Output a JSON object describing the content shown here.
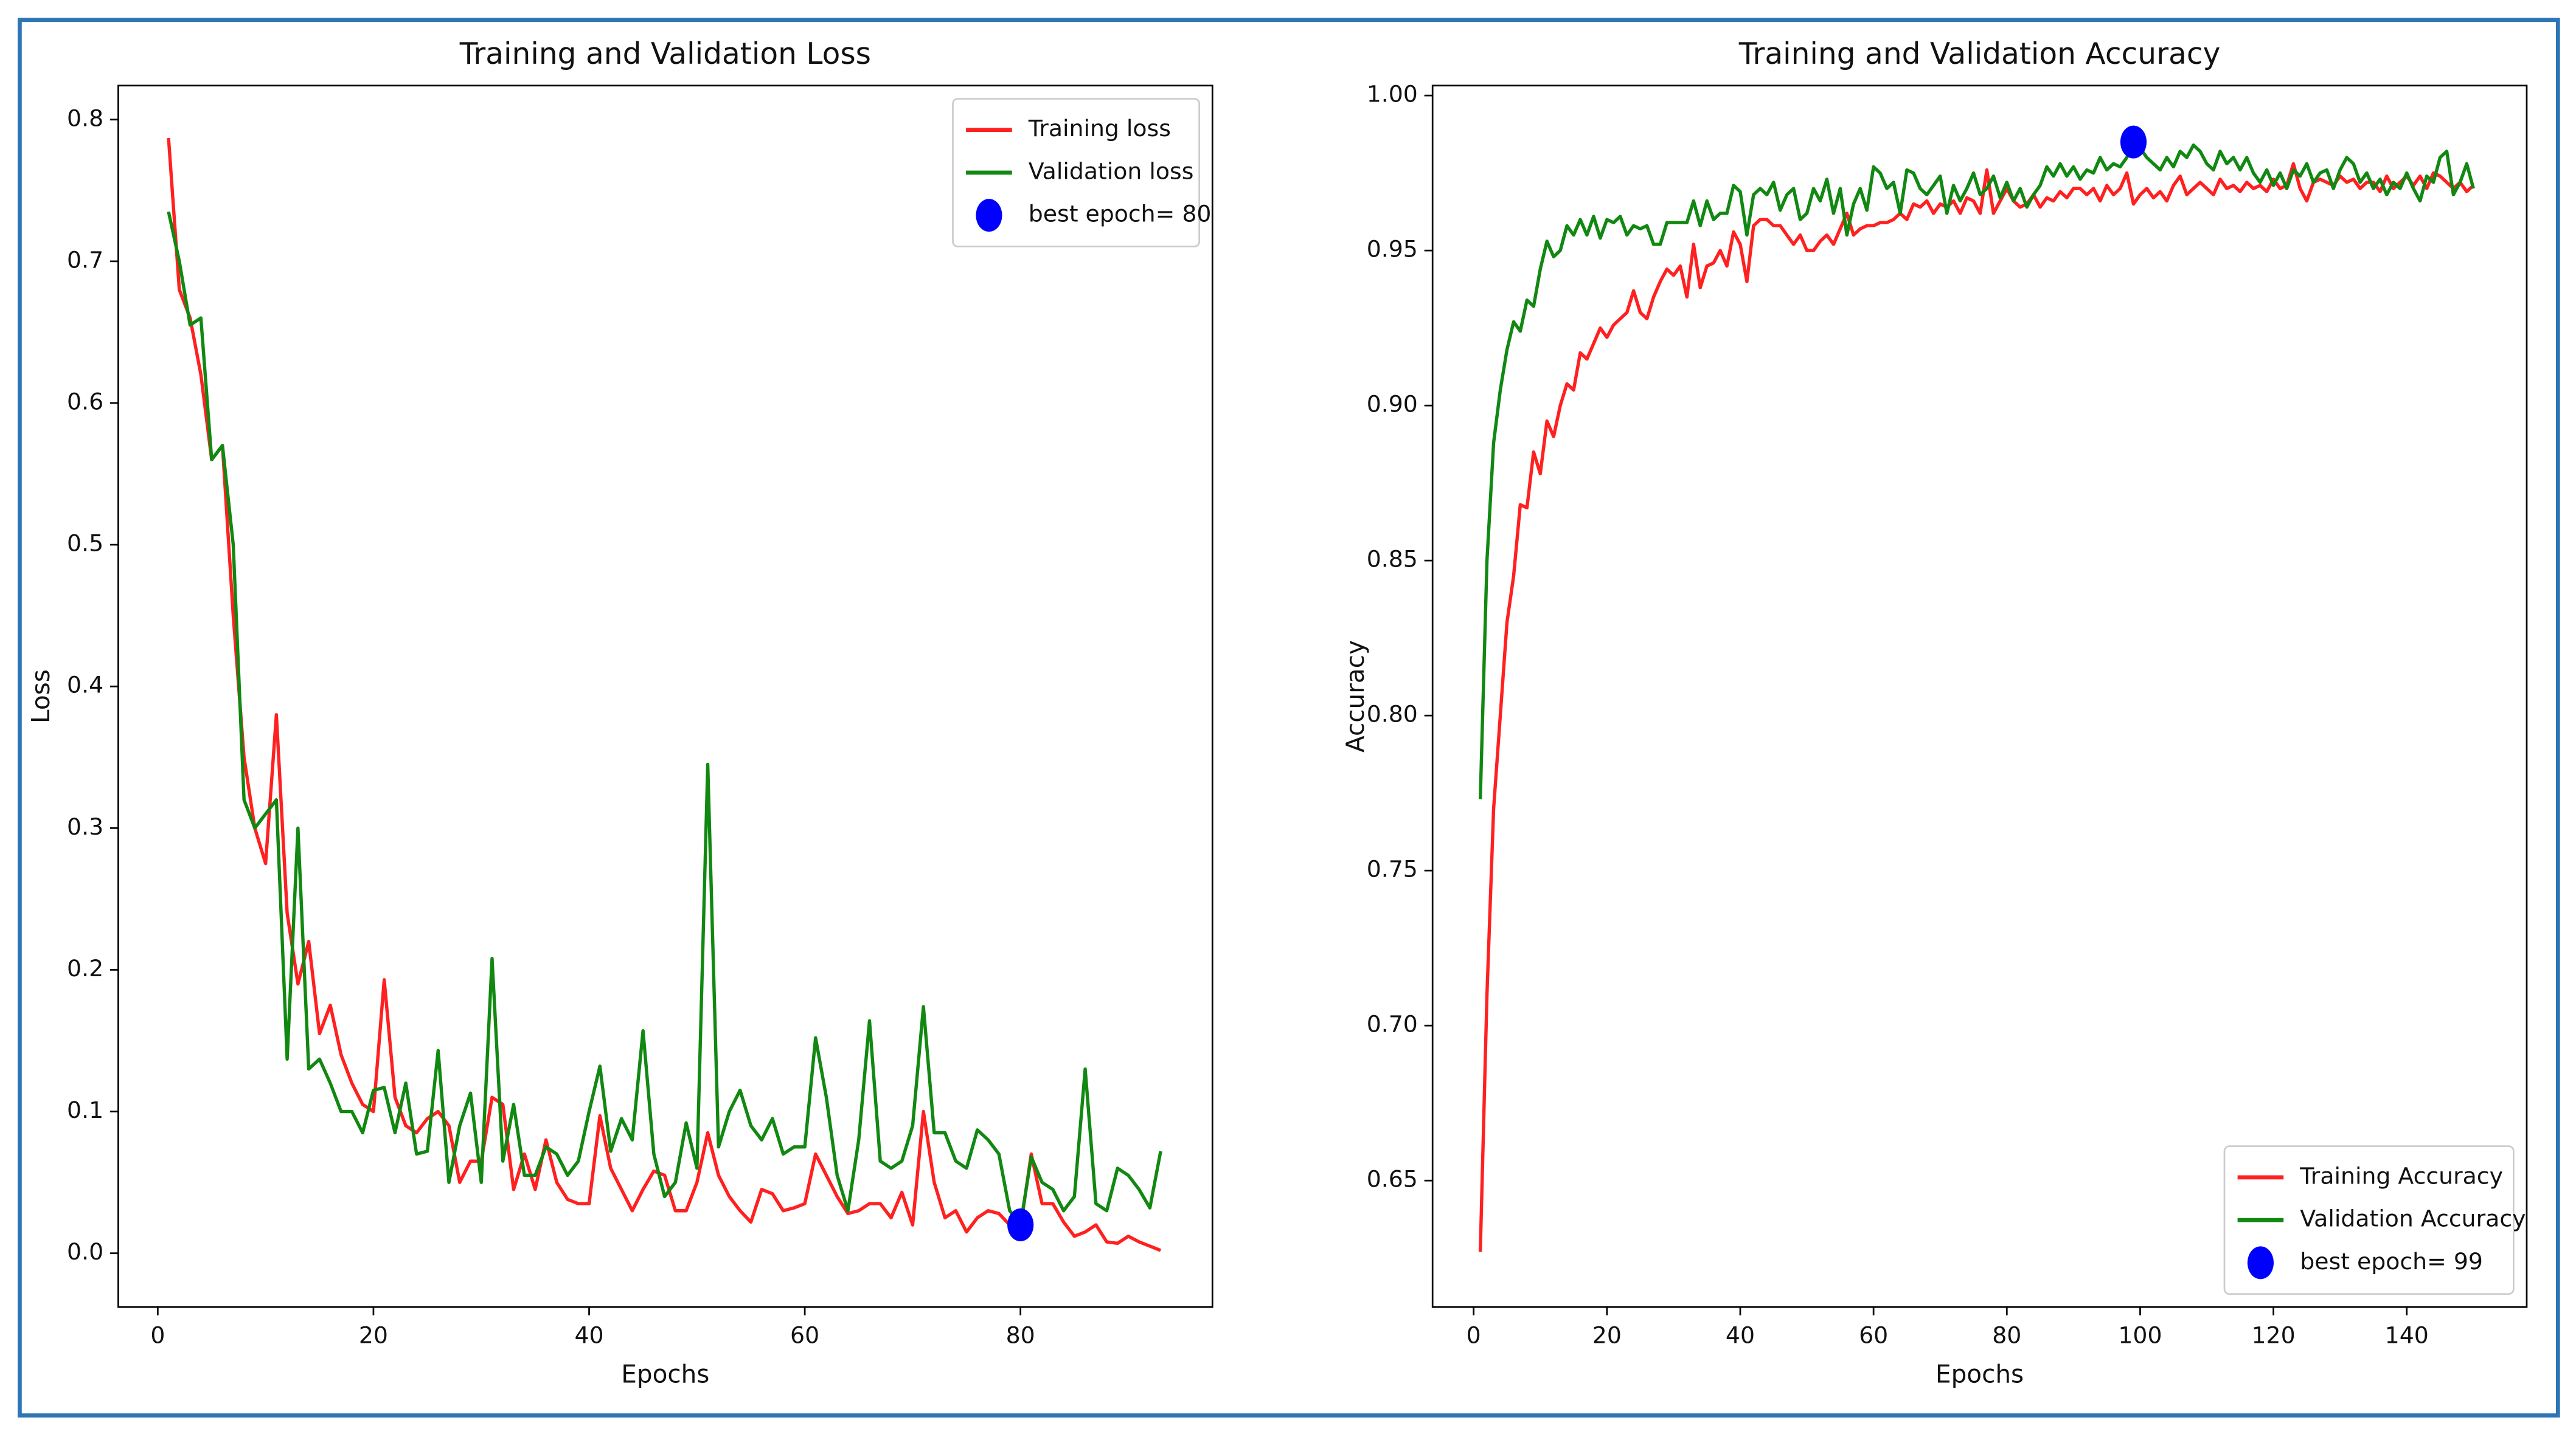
{
  "chart_data": [
    {
      "type": "line",
      "title": "Training and Validation Loss",
      "x_label": "Epochs",
      "y_label": "Loss",
      "xlim": [
        -3.66,
        97.8
      ],
      "ylim": [
        -0.038,
        0.824
      ],
      "xticks": [
        0,
        20,
        40,
        60,
        80
      ],
      "yticks": [
        {
          "value": 0,
          "label": "0.0"
        },
        0.1,
        0.2,
        0.3,
        0.4,
        0.5,
        0.6,
        0.7,
        0.8
      ],
      "legend": "upper right",
      "x": [
        1,
        2,
        3,
        4,
        5,
        6,
        7,
        8,
        9,
        10,
        11,
        12,
        13,
        14,
        15,
        16,
        17,
        18,
        19,
        20,
        21,
        22,
        23,
        24,
        25,
        26,
        27,
        28,
        29,
        30,
        31,
        32,
        33,
        34,
        35,
        36,
        37,
        38,
        39,
        40,
        41,
        42,
        43,
        44,
        45,
        46,
        47,
        48,
        49,
        50,
        51,
        52,
        53,
        54,
        55,
        56,
        57,
        58,
        59,
        60,
        61,
        62,
        63,
        64,
        65,
        66,
        67,
        68,
        69,
        70,
        71,
        72,
        73,
        74,
        75,
        76,
        77,
        78,
        79,
        80,
        81,
        82,
        83,
        84,
        85,
        86,
        87,
        88,
        89,
        90,
        91,
        92,
        93
      ],
      "series": [
        {
          "name": "Training loss",
          "color": "#ff2020",
          "values": [
            0.787,
            0.68,
            0.66,
            0.62,
            0.56,
            0.57,
            0.45,
            0.35,
            0.3,
            0.275,
            0.38,
            0.24,
            0.19,
            0.22,
            0.155,
            0.175,
            0.14,
            0.12,
            0.105,
            0.1,
            0.193,
            0.11,
            0.09,
            0.085,
            0.095,
            0.1,
            0.09,
            0.05,
            0.065,
            0.065,
            0.11,
            0.105,
            0.045,
            0.07,
            0.045,
            0.08,
            0.05,
            0.038,
            0.035,
            0.035,
            0.097,
            0.06,
            0.045,
            0.03,
            0.045,
            0.058,
            0.055,
            0.03,
            0.03,
            0.05,
            0.085,
            0.055,
            0.04,
            0.03,
            0.022,
            0.045,
            0.042,
            0.03,
            0.032,
            0.035,
            0.07,
            0.055,
            0.04,
            0.028,
            0.03,
            0.035,
            0.035,
            0.025,
            0.043,
            0.02,
            0.1,
            0.05,
            0.025,
            0.03,
            0.015,
            0.025,
            0.03,
            0.028,
            0.02,
            0.018,
            0.07,
            0.035,
            0.035,
            0.022,
            0.012,
            0.015,
            0.02,
            0.008,
            0.007,
            0.012,
            0.008,
            0.005,
            0.002
          ]
        },
        {
          "name": "Validation loss",
          "color": "#118811",
          "values": [
            0.735,
            0.7,
            0.655,
            0.66,
            0.56,
            0.57,
            0.5,
            0.32,
            0.3,
            0.31,
            0.32,
            0.137,
            0.3,
            0.13,
            0.137,
            0.12,
            0.1,
            0.1,
            0.085,
            0.115,
            0.117,
            0.085,
            0.12,
            0.07,
            0.072,
            0.143,
            0.05,
            0.09,
            0.113,
            0.05,
            0.208,
            0.065,
            0.105,
            0.055,
            0.055,
            0.075,
            0.07,
            0.055,
            0.065,
            0.1,
            0.132,
            0.072,
            0.095,
            0.08,
            0.157,
            0.07,
            0.04,
            0.05,
            0.092,
            0.06,
            0.345,
            0.075,
            0.1,
            0.115,
            0.09,
            0.08,
            0.095,
            0.07,
            0.075,
            0.075,
            0.152,
            0.11,
            0.055,
            0.03,
            0.08,
            0.164,
            0.065,
            0.06,
            0.065,
            0.09,
            0.174,
            0.085,
            0.085,
            0.065,
            0.06,
            0.087,
            0.08,
            0.07,
            0.03,
            0.02,
            0.068,
            0.05,
            0.045,
            0.03,
            0.04,
            0.13,
            0.035,
            0.03,
            0.06,
            0.055,
            0.045,
            0.032,
            0.072
          ]
        }
      ],
      "best": {
        "name": "best epoch= 80",
        "color": "#0000ff",
        "x": 80,
        "value": 0.02
      }
    },
    {
      "type": "line",
      "title": "Training and Validation Accuracy",
      "x_label": "Epochs",
      "y_label": "Accuracy",
      "xlim": [
        -6.16,
        158
      ],
      "ylim": [
        0.6092,
        1.0032
      ],
      "xticks": [
        0,
        20,
        40,
        60,
        80,
        100,
        120,
        140
      ],
      "yticks": [
        0.65,
        {
          "value": 0.7,
          "label": "0.70"
        },
        0.75,
        {
          "value": 0.8,
          "label": "0.80"
        },
        0.85,
        {
          "value": 0.9,
          "label": "0.90"
        },
        0.95,
        {
          "value": 1,
          "label": "1.00"
        }
      ],
      "legend": "lower right",
      "x": [
        1,
        2,
        3,
        4,
        5,
        6,
        7,
        8,
        9,
        10,
        11,
        12,
        13,
        14,
        15,
        16,
        17,
        18,
        19,
        20,
        21,
        22,
        23,
        24,
        25,
        26,
        27,
        28,
        29,
        30,
        31,
        32,
        33,
        34,
        35,
        36,
        37,
        38,
        39,
        40,
        41,
        42,
        43,
        44,
        45,
        46,
        47,
        48,
        49,
        50,
        51,
        52,
        53,
        54,
        55,
        56,
        57,
        58,
        59,
        60,
        61,
        62,
        63,
        64,
        65,
        66,
        67,
        68,
        69,
        70,
        71,
        72,
        73,
        74,
        75,
        76,
        77,
        78,
        79,
        80,
        81,
        82,
        83,
        84,
        85,
        86,
        87,
        88,
        89,
        90,
        91,
        92,
        93,
        94,
        95,
        96,
        97,
        98,
        99,
        100,
        101,
        102,
        103,
        104,
        105,
        106,
        107,
        108,
        109,
        110,
        111,
        112,
        113,
        114,
        115,
        116,
        117,
        118,
        119,
        120,
        121,
        122,
        123,
        124,
        125,
        126,
        127,
        128,
        129,
        130,
        131,
        132,
        133,
        134,
        135,
        136,
        137,
        138,
        139,
        140,
        141,
        142,
        143,
        144,
        145,
        146,
        147,
        148,
        149,
        150
      ],
      "series": [
        {
          "name": "Training Accuracy",
          "color": "#ff2020",
          "values": [
            0.627,
            0.71,
            0.77,
            0.8,
            0.83,
            0.845,
            0.868,
            0.867,
            0.885,
            0.878,
            0.895,
            0.89,
            0.9,
            0.907,
            0.905,
            0.917,
            0.915,
            0.92,
            0.925,
            0.922,
            0.926,
            0.928,
            0.93,
            0.937,
            0.93,
            0.928,
            0.935,
            0.94,
            0.944,
            0.942,
            0.945,
            0.935,
            0.952,
            0.938,
            0.945,
            0.946,
            0.95,
            0.945,
            0.956,
            0.952,
            0.94,
            0.958,
            0.96,
            0.96,
            0.958,
            0.958,
            0.955,
            0.952,
            0.955,
            0.95,
            0.95,
            0.953,
            0.955,
            0.952,
            0.957,
            0.962,
            0.955,
            0.957,
            0.958,
            0.958,
            0.959,
            0.959,
            0.96,
            0.962,
            0.96,
            0.965,
            0.964,
            0.966,
            0.962,
            0.965,
            0.964,
            0.966,
            0.962,
            0.967,
            0.966,
            0.962,
            0.976,
            0.962,
            0.966,
            0.97,
            0.966,
            0.964,
            0.965,
            0.968,
            0.964,
            0.967,
            0.966,
            0.969,
            0.967,
            0.97,
            0.97,
            0.968,
            0.97,
            0.966,
            0.971,
            0.968,
            0.97,
            0.975,
            0.965,
            0.968,
            0.97,
            0.967,
            0.969,
            0.966,
            0.971,
            0.974,
            0.968,
            0.97,
            0.972,
            0.97,
            0.968,
            0.973,
            0.97,
            0.971,
            0.969,
            0.972,
            0.97,
            0.971,
            0.969,
            0.973,
            0.97,
            0.971,
            0.978,
            0.97,
            0.966,
            0.972,
            0.973,
            0.972,
            0.971,
            0.974,
            0.972,
            0.973,
            0.97,
            0.972,
            0.972,
            0.969,
            0.974,
            0.97,
            0.972,
            0.974,
            0.971,
            0.974,
            0.97,
            0.975,
            0.974,
            0.972,
            0.97,
            0.972,
            0.969,
            0.971
          ]
        },
        {
          "name": "Validation Accuracy",
          "color": "#118811",
          "values": [
            0.773,
            0.85,
            0.888,
            0.905,
            0.918,
            0.927,
            0.924,
            0.934,
            0.932,
            0.944,
            0.953,
            0.948,
            0.95,
            0.958,
            0.955,
            0.96,
            0.955,
            0.961,
            0.954,
            0.96,
            0.959,
            0.961,
            0.955,
            0.958,
            0.957,
            0.958,
            0.952,
            0.952,
            0.959,
            0.959,
            0.959,
            0.959,
            0.966,
            0.958,
            0.966,
            0.96,
            0.962,
            0.962,
            0.971,
            0.969,
            0.955,
            0.968,
            0.97,
            0.968,
            0.972,
            0.963,
            0.968,
            0.97,
            0.96,
            0.962,
            0.97,
            0.966,
            0.973,
            0.962,
            0.97,
            0.955,
            0.965,
            0.97,
            0.963,
            0.977,
            0.975,
            0.97,
            0.972,
            0.962,
            0.976,
            0.975,
            0.97,
            0.968,
            0.971,
            0.974,
            0.962,
            0.971,
            0.966,
            0.97,
            0.975,
            0.968,
            0.97,
            0.974,
            0.967,
            0.972,
            0.966,
            0.97,
            0.964,
            0.968,
            0.971,
            0.977,
            0.974,
            0.978,
            0.974,
            0.977,
            0.973,
            0.976,
            0.975,
            0.98,
            0.976,
            0.978,
            0.977,
            0.98,
            0.985,
            0.983,
            0.98,
            0.978,
            0.976,
            0.98,
            0.977,
            0.982,
            0.98,
            0.984,
            0.982,
            0.978,
            0.976,
            0.982,
            0.978,
            0.98,
            0.976,
            0.98,
            0.975,
            0.972,
            0.976,
            0.971,
            0.975,
            0.97,
            0.976,
            0.974,
            0.978,
            0.972,
            0.975,
            0.976,
            0.97,
            0.976,
            0.98,
            0.978,
            0.972,
            0.975,
            0.97,
            0.973,
            0.968,
            0.972,
            0.97,
            0.975,
            0.97,
            0.966,
            0.974,
            0.972,
            0.98,
            0.982,
            0.968,
            0.972,
            0.978,
            0.97
          ]
        }
      ],
      "best": {
        "name": "best epoch= 99",
        "color": "#0000ff",
        "x": 99,
        "value": 0.985
      }
    }
  ]
}
